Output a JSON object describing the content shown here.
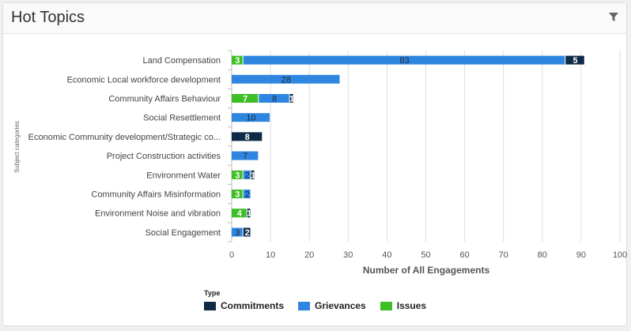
{
  "panel": {
    "title": "Hot Topics",
    "filter_icon": "filter-icon"
  },
  "colors": {
    "Commitments": "#0e2a47",
    "Grievances": "#2f86e0",
    "Issues": "#3ebf25"
  },
  "legend": {
    "title": "Type",
    "items": [
      "Commitments",
      "Grievances",
      "Issues"
    ]
  },
  "chart_data": {
    "type": "bar",
    "orientation": "horizontal",
    "stacked": true,
    "categories": [
      "Land Compensation",
      "Economic Local workforce development",
      "Community Affairs Behaviour",
      "Social Resettlement",
      "Economic Community development/Strategic co...",
      "Project Construction activities",
      "Environment Water",
      "Community Affairs Misinformation",
      "Environment Noise and vibration",
      "Social Engagement"
    ],
    "series": [
      {
        "name": "Issues",
        "values": [
          3,
          0,
          7,
          0,
          0,
          0,
          3,
          3,
          4,
          0
        ]
      },
      {
        "name": "Grievances",
        "values": [
          83,
          28,
          8,
          10,
          0,
          7,
          2,
          2,
          0,
          3
        ]
      },
      {
        "name": "Commitments",
        "values": [
          5,
          0,
          1,
          0,
          8,
          0,
          1,
          0,
          1,
          2
        ]
      }
    ],
    "xlabel": "Number of All Engagements",
    "ylabel": "Subject categories",
    "xlim": [
      0,
      100
    ],
    "xticks": [
      0,
      10,
      20,
      30,
      40,
      50,
      60,
      70,
      80,
      90,
      100
    ],
    "grid": true,
    "legend_position": "bottom"
  }
}
